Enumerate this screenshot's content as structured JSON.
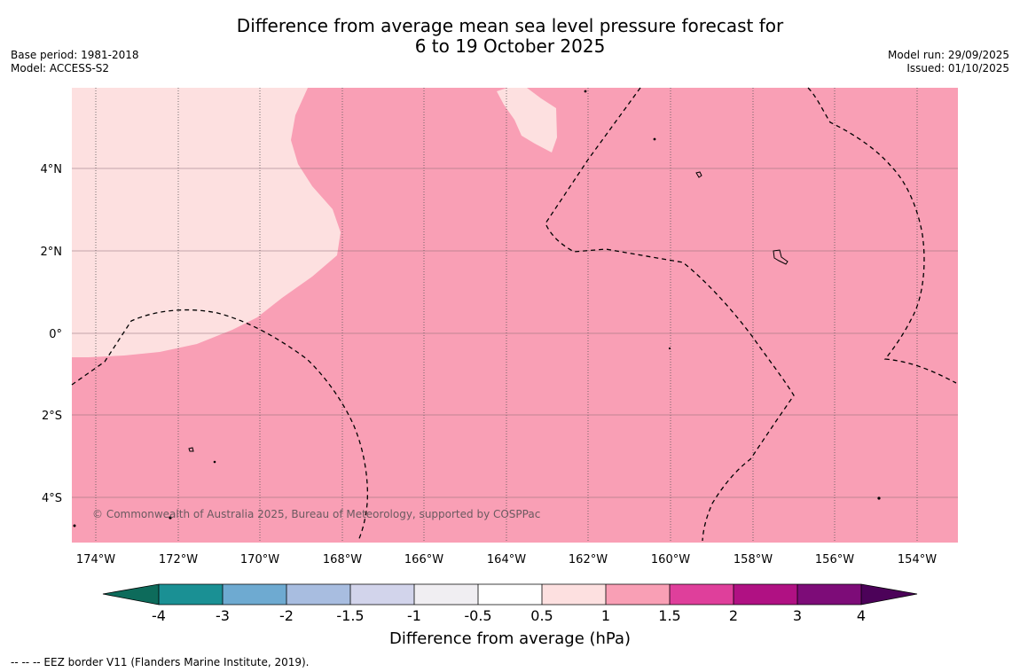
{
  "title": {
    "line1": "Difference from average mean sea level pressure forecast for",
    "line2": "6 to 19 October 2025"
  },
  "meta_left": {
    "base_period": "Base period: 1981-2018",
    "model": "Model: ACCESS-S2"
  },
  "meta_right": {
    "model_run": "Model run: 29/09/2025",
    "issued": "Issued: 01/10/2025"
  },
  "map": {
    "copyright": "© Commonwealth of Australia 2025, Bureau of Meteorology, supported by COSPPac",
    "lon_ticks": [
      "174°W",
      "172°W",
      "170°W",
      "168°W",
      "166°W",
      "164°W",
      "162°W",
      "160°W",
      "158°W",
      "156°W",
      "154°W"
    ],
    "lat_ticks": [
      "4°N",
      "2°N",
      "0°",
      "2°S",
      "4°S"
    ],
    "fill_colors": {
      "main": "#f99fb5",
      "light": "#fde0e0"
    }
  },
  "colorbar": {
    "title": "Difference from average (hPa)",
    "labels": [
      "-4",
      "-3",
      "-2",
      "-1.5",
      "-1",
      "-0.5",
      "0.5",
      "1",
      "1.5",
      "2",
      "3",
      "4"
    ],
    "colors": [
      "#1a9094",
      "#6eaad1",
      "#a8bde0",
      "#d2d4eb",
      "#f0eef2",
      "#ffffff",
      "#fde0e0",
      "#f99fb5",
      "#df3f9b",
      "#b01183",
      "#7d0c78"
    ],
    "min_color": "#0d6b5b",
    "max_color": "#4c0259"
  },
  "footer": {
    "legend_text": "--  --  -- EEZ border V11 (Flanders Marine Institute, 2019)."
  }
}
